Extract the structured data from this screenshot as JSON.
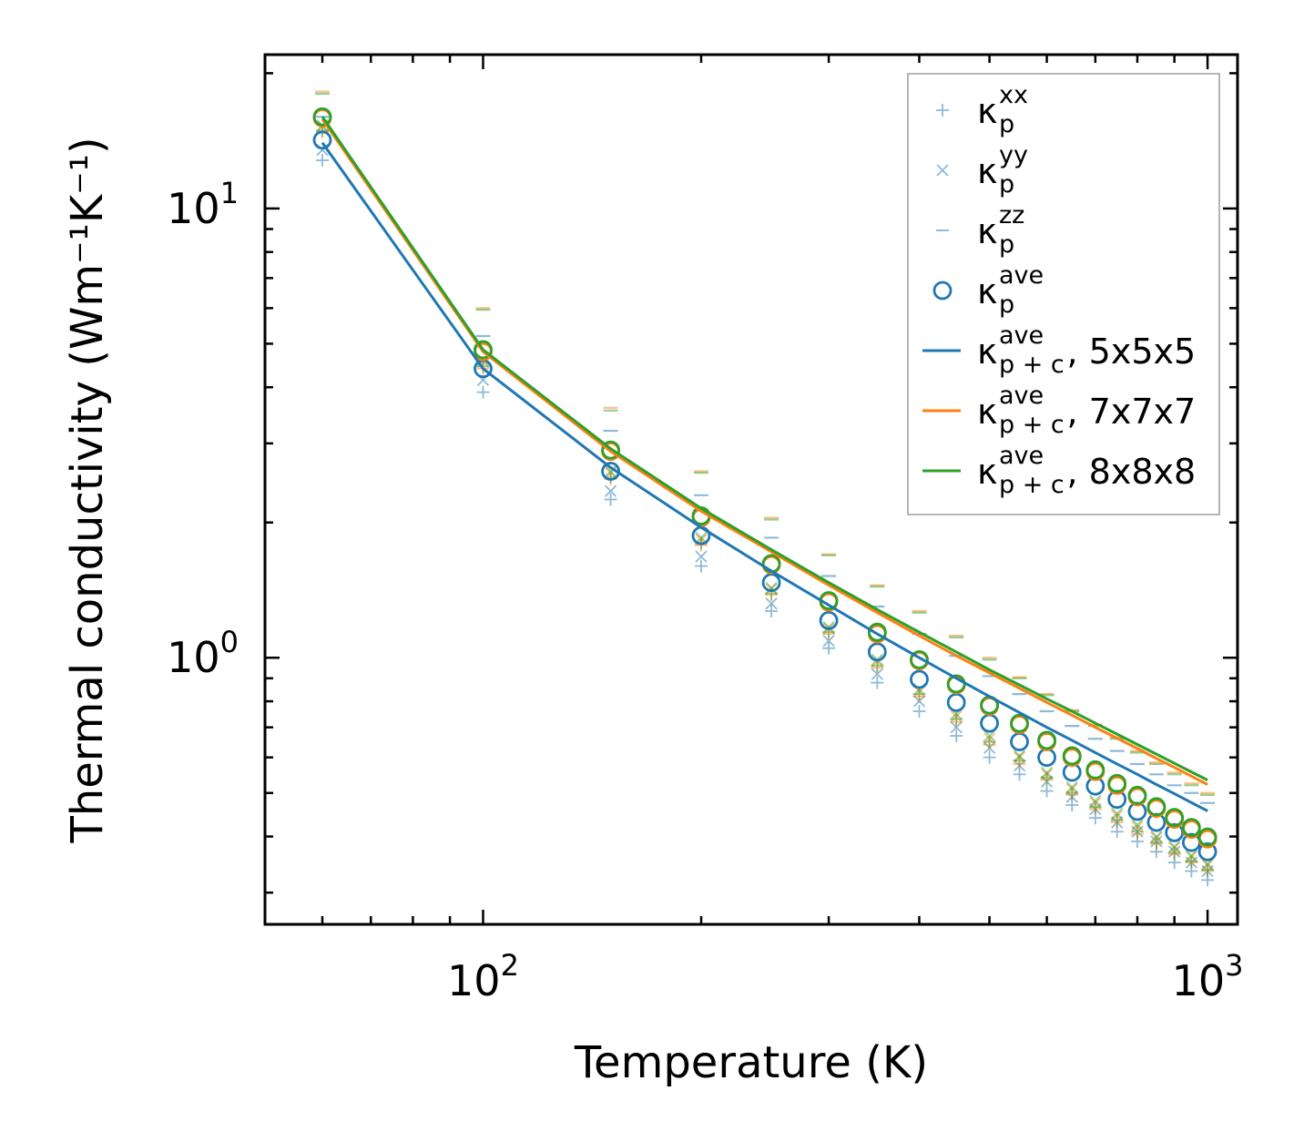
{
  "chart_data": {
    "type": "scatter",
    "xscale": "log",
    "yscale": "log",
    "xlim": [
      50,
      1100
    ],
    "ylim": [
      0.255,
      22
    ],
    "xlabel": "Temperature (K)",
    "ylabel": "Thermal conductivity (Wm⁻¹K⁻¹)",
    "x_ticks": [
      {
        "value": 100,
        "base": "10",
        "exp": "2"
      },
      {
        "value": 1000,
        "base": "10",
        "exp": "3"
      }
    ],
    "y_ticks": [
      {
        "value": 1,
        "base": "10",
        "exp": "0"
      },
      {
        "value": 10,
        "base": "10",
        "exp": "1"
      }
    ],
    "x": [
      60,
      100,
      150,
      200,
      250,
      300,
      350,
      400,
      450,
      500,
      550,
      600,
      650,
      700,
      750,
      800,
      850,
      900,
      950,
      1000
    ],
    "scatter_sets": [
      {
        "name": "5x5x5",
        "color": "#1f77b4",
        "xx": [
          12.8,
          3.9,
          2.25,
          1.6,
          1.27,
          1.05,
          0.88,
          0.76,
          0.67,
          0.6,
          0.55,
          0.505,
          0.47,
          0.44,
          0.41,
          0.39,
          0.37,
          0.35,
          0.335,
          0.32
        ],
        "yy": [
          13.5,
          4.15,
          2.35,
          1.68,
          1.32,
          1.09,
          0.92,
          0.8,
          0.7,
          0.63,
          0.575,
          0.53,
          0.49,
          0.46,
          0.43,
          0.41,
          0.39,
          0.37,
          0.35,
          0.335
        ],
        "zz": [
          16.0,
          5.2,
          3.2,
          2.3,
          1.85,
          1.52,
          1.3,
          1.13,
          1.01,
          0.91,
          0.83,
          0.76,
          0.705,
          0.66,
          0.62,
          0.58,
          0.55,
          0.52,
          0.5,
          0.475
        ],
        "ave": [
          14.2,
          4.4,
          2.6,
          1.87,
          1.47,
          1.21,
          1.03,
          0.895,
          0.795,
          0.715,
          0.65,
          0.6,
          0.556,
          0.518,
          0.484,
          0.455,
          0.43,
          0.408,
          0.388,
          0.37
        ]
      },
      {
        "name": "7x7x7",
        "color": "#ff7f0e",
        "xx": [
          14.8,
          4.4,
          2.5,
          1.78,
          1.38,
          1.13,
          0.95,
          0.82,
          0.72,
          0.64,
          0.58,
          0.535,
          0.495,
          0.46,
          0.43,
          0.405,
          0.385,
          0.365,
          0.35,
          0.335
        ],
        "yy": [
          15.2,
          4.55,
          2.58,
          1.83,
          1.42,
          1.16,
          0.98,
          0.84,
          0.74,
          0.66,
          0.6,
          0.55,
          0.51,
          0.475,
          0.445,
          0.42,
          0.397,
          0.377,
          0.36,
          0.345
        ],
        "zz": [
          18.2,
          6.0,
          3.6,
          2.6,
          2.05,
          1.7,
          1.45,
          1.27,
          1.12,
          1.0,
          0.905,
          0.83,
          0.765,
          0.71,
          0.665,
          0.62,
          0.585,
          0.555,
          0.525,
          0.5
        ],
        "ave": [
          15.9,
          4.8,
          2.88,
          2.05,
          1.61,
          1.33,
          1.13,
          0.985,
          0.87,
          0.78,
          0.71,
          0.65,
          0.6,
          0.558,
          0.52,
          0.49,
          0.462,
          0.437,
          0.415,
          0.395
        ]
      },
      {
        "name": "8x8x8",
        "color": "#2ca02c",
        "xx": [
          14.9,
          4.45,
          2.52,
          1.8,
          1.39,
          1.14,
          0.96,
          0.83,
          0.73,
          0.65,
          0.59,
          0.54,
          0.5,
          0.465,
          0.435,
          0.41,
          0.388,
          0.368,
          0.352,
          0.337
        ],
        "yy": [
          15.3,
          4.6,
          2.6,
          1.85,
          1.43,
          1.17,
          0.99,
          0.85,
          0.75,
          0.67,
          0.605,
          0.555,
          0.515,
          0.48,
          0.45,
          0.425,
          0.4,
          0.38,
          0.363,
          0.348
        ],
        "zz": [
          18.0,
          5.95,
          3.55,
          2.58,
          2.03,
          1.69,
          1.44,
          1.26,
          1.11,
          0.99,
          0.9,
          0.825,
          0.76,
          0.705,
          0.66,
          0.615,
          0.58,
          0.55,
          0.52,
          0.495
        ],
        "ave": [
          16.0,
          4.85,
          2.9,
          2.07,
          1.62,
          1.34,
          1.14,
          0.99,
          0.875,
          0.785,
          0.715,
          0.655,
          0.605,
          0.563,
          0.525,
          0.494,
          0.466,
          0.441,
          0.419,
          0.399
        ]
      }
    ],
    "line_series": [
      {
        "name": "5x5x5",
        "color": "#1f77b4",
        "values": [
          14.0,
          4.4,
          2.65,
          1.95,
          1.56,
          1.31,
          1.13,
          1.0,
          0.9,
          0.82,
          0.755,
          0.7,
          0.655,
          0.615,
          0.58,
          0.55,
          0.522,
          0.498,
          0.476,
          0.456
        ]
      },
      {
        "name": "7x7x7",
        "color": "#ff7f0e",
        "values": [
          15.8,
          4.8,
          2.88,
          2.12,
          1.72,
          1.45,
          1.26,
          1.12,
          1.01,
          0.925,
          0.855,
          0.795,
          0.745,
          0.7,
          0.662,
          0.628,
          0.597,
          0.57,
          0.545,
          0.522
        ]
      },
      {
        "name": "8x8x8",
        "color": "#2ca02c",
        "values": [
          16.0,
          4.85,
          2.92,
          2.15,
          1.74,
          1.47,
          1.28,
          1.14,
          1.03,
          0.94,
          0.87,
          0.81,
          0.76,
          0.715,
          0.676,
          0.641,
          0.61,
          0.582,
          0.557,
          0.534
        ]
      }
    ],
    "legend": {
      "placement": "top-right",
      "entries": [
        {
          "key": "xx",
          "marker": "plus",
          "color": "#1f77b4",
          "symbol": "κ",
          "sub": "p",
          "sup": "xx",
          "suffix": ""
        },
        {
          "key": "yy",
          "marker": "x",
          "color": "#1f77b4",
          "symbol": "κ",
          "sub": "p",
          "sup": "yy",
          "suffix": ""
        },
        {
          "key": "zz",
          "marker": "hline",
          "color": "#1f77b4",
          "symbol": "κ",
          "sub": "p",
          "sup": "zz",
          "suffix": ""
        },
        {
          "key": "ave",
          "marker": "circle",
          "color": "#1f77b4",
          "symbol": "κ",
          "sub": "p",
          "sup": "ave",
          "suffix": ""
        },
        {
          "key": "line-5",
          "marker": "line",
          "color": "#1f77b4",
          "symbol": "κ",
          "sub": "p + c",
          "sup": "ave",
          "suffix": ", 5x5x5"
        },
        {
          "key": "line-7",
          "marker": "line",
          "color": "#ff7f0e",
          "symbol": "κ",
          "sub": "p + c",
          "sup": "ave",
          "suffix": ", 7x7x7"
        },
        {
          "key": "line-8",
          "marker": "line",
          "color": "#2ca02c",
          "symbol": "κ",
          "sub": "p + c",
          "sup": "ave",
          "suffix": ", 8x8x8"
        }
      ]
    }
  }
}
